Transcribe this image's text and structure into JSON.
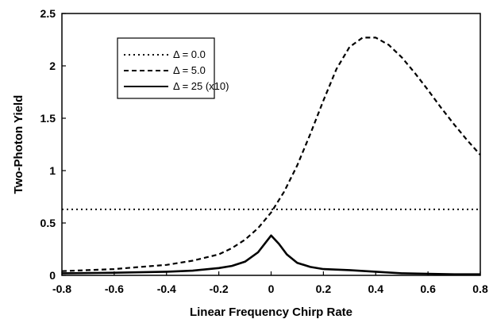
{
  "chart_data": {
    "type": "line",
    "title": "",
    "xlabel": "Linear Frequency Chirp Rate",
    "ylabel": "Two-Photon Yield",
    "xlim": [
      -0.8,
      0.8
    ],
    "ylim": [
      0,
      2.5
    ],
    "x_ticks": [
      -0.8,
      -0.6,
      -0.4,
      -0.2,
      0,
      0.2,
      0.4,
      0.6,
      0.8
    ],
    "x_tick_labels": [
      "-0.8",
      "-0.6",
      "-0.4",
      "-0.2",
      "0",
      "0.2",
      "0.4",
      "0.6",
      "0.8"
    ],
    "y_ticks": [
      0,
      0.5,
      1,
      1.5,
      2,
      2.5
    ],
    "y_tick_labels": [
      "0",
      "0.5",
      "1",
      "1.5",
      "2",
      "2.5"
    ],
    "grid": false,
    "legend_position": "top-left",
    "series": [
      {
        "name": "Δ = 0.0",
        "style": "dotted",
        "x": [
          -0.8,
          -0.4,
          0,
          0.4,
          0.8
        ],
        "y": [
          0.63,
          0.63,
          0.63,
          0.63,
          0.63
        ]
      },
      {
        "name": "Δ = 5.0",
        "style": "dashed",
        "x": [
          -0.8,
          -0.7,
          -0.6,
          -0.5,
          -0.4,
          -0.3,
          -0.2,
          -0.15,
          -0.1,
          -0.05,
          0,
          0.05,
          0.1,
          0.15,
          0.2,
          0.25,
          0.3,
          0.35,
          0.4,
          0.45,
          0.5,
          0.55,
          0.6,
          0.65,
          0.7,
          0.75,
          0.8
        ],
        "y": [
          0.04,
          0.05,
          0.06,
          0.08,
          0.1,
          0.14,
          0.2,
          0.26,
          0.34,
          0.45,
          0.6,
          0.8,
          1.05,
          1.35,
          1.67,
          1.97,
          2.18,
          2.27,
          2.27,
          2.2,
          2.08,
          1.93,
          1.77,
          1.6,
          1.44,
          1.29,
          1.15
        ]
      },
      {
        "name": "Δ = 25 (x10)",
        "style": "solid",
        "x": [
          -0.8,
          -0.6,
          -0.4,
          -0.3,
          -0.2,
          -0.15,
          -0.1,
          -0.05,
          0,
          0.03,
          0.06,
          0.1,
          0.15,
          0.2,
          0.3,
          0.4,
          0.5,
          0.6,
          0.7,
          0.8
        ],
        "y": [
          0.02,
          0.025,
          0.035,
          0.045,
          0.07,
          0.09,
          0.13,
          0.22,
          0.38,
          0.3,
          0.2,
          0.12,
          0.08,
          0.06,
          0.05,
          0.035,
          0.02,
          0.015,
          0.01,
          0.01
        ]
      }
    ]
  }
}
